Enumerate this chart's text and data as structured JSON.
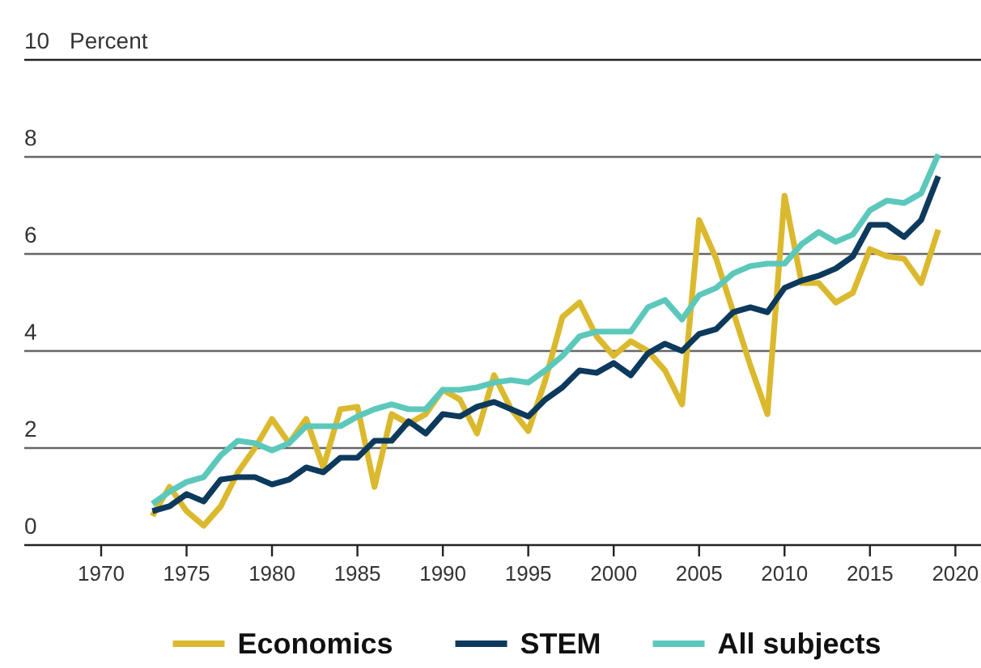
{
  "chart_data": {
    "type": "line",
    "ylabel": "Percent",
    "x": [
      1973,
      1974,
      1975,
      1976,
      1977,
      1978,
      1979,
      1980,
      1981,
      1982,
      1983,
      1984,
      1985,
      1986,
      1987,
      1988,
      1989,
      1990,
      1991,
      1992,
      1993,
      1994,
      1995,
      1996,
      1997,
      1998,
      1999,
      2000,
      2001,
      2002,
      2003,
      2004,
      2005,
      2006,
      2007,
      2008,
      2009,
      2010,
      2011,
      2012,
      2013,
      2014,
      2015,
      2016,
      2017,
      2018,
      2019
    ],
    "series": [
      {
        "name": "Economics",
        "color": "#dbb92e",
        "values": [
          0.6,
          1.2,
          0.7,
          0.4,
          0.8,
          1.5,
          2.0,
          2.6,
          2.1,
          2.6,
          1.6,
          2.8,
          2.85,
          1.2,
          2.7,
          2.5,
          2.7,
          3.2,
          3.0,
          2.3,
          3.5,
          2.8,
          2.35,
          3.4,
          4.7,
          5.0,
          4.3,
          3.9,
          4.2,
          4.0,
          3.6,
          2.9,
          6.7,
          5.9,
          4.8,
          3.7,
          2.7,
          7.2,
          5.4,
          5.4,
          5.0,
          5.2,
          6.1,
          5.95,
          5.9,
          5.4,
          6.5
        ]
      },
      {
        "name": "STEM",
        "color": "#0d3a5c",
        "values": [
          0.7,
          0.8,
          1.05,
          0.9,
          1.35,
          1.4,
          1.4,
          1.25,
          1.35,
          1.6,
          1.5,
          1.8,
          1.8,
          2.15,
          2.15,
          2.55,
          2.3,
          2.7,
          2.65,
          2.85,
          2.95,
          2.8,
          2.65,
          3.0,
          3.25,
          3.6,
          3.55,
          3.75,
          3.5,
          3.95,
          4.15,
          4.0,
          4.35,
          4.45,
          4.8,
          4.9,
          4.8,
          5.3,
          5.45,
          5.55,
          5.7,
          5.95,
          6.6,
          6.6,
          6.35,
          6.7,
          7.6
        ]
      },
      {
        "name": "All subjects",
        "color": "#5cc8bb",
        "values": [
          0.85,
          1.1,
          1.3,
          1.4,
          1.85,
          2.15,
          2.1,
          1.95,
          2.1,
          2.45,
          2.45,
          2.45,
          2.65,
          2.8,
          2.9,
          2.8,
          2.8,
          3.2,
          3.2,
          3.25,
          3.35,
          3.4,
          3.35,
          3.6,
          3.9,
          4.3,
          4.4,
          4.4,
          4.4,
          4.9,
          5.05,
          4.65,
          5.15,
          5.3,
          5.6,
          5.75,
          5.8,
          5.8,
          6.2,
          6.45,
          6.25,
          6.4,
          6.9,
          7.1,
          7.05,
          7.25,
          8.05
        ]
      }
    ],
    "xlim": [
      1965.5,
      2021.5
    ],
    "xticks": [
      1970,
      1975,
      1980,
      1985,
      1990,
      1995,
      2000,
      2005,
      2010,
      2015,
      2020
    ],
    "ylim": [
      0,
      10
    ],
    "yticks": [
      0,
      2,
      4,
      6,
      8,
      10
    ],
    "grid": "y",
    "legend": "bottom",
    "marker": "none",
    "line_style": "solid"
  }
}
